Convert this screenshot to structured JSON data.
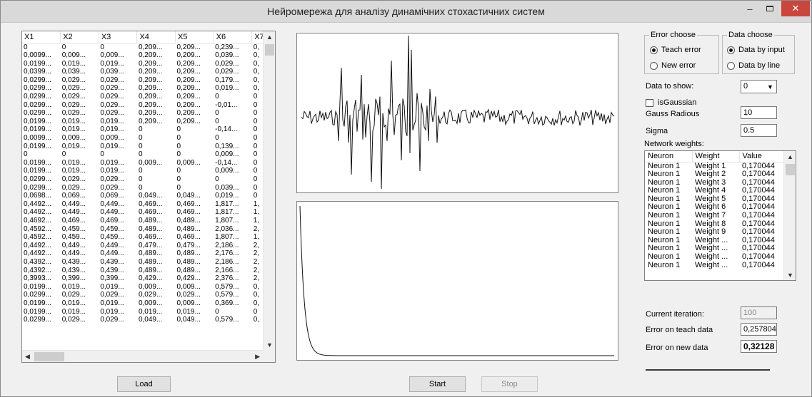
{
  "window": {
    "title": "Нейромережа для аналізу динамічних стохастичних систем",
    "minimize_glyph": "–",
    "close_glyph": "✕",
    "close_color": "#c9463d"
  },
  "data_grid": {
    "columns": [
      "X1",
      "X2",
      "X3",
      "X4",
      "X5",
      "X6",
      "X7"
    ],
    "rows": [
      [
        "0",
        "0",
        "0",
        "0,209...",
        "0,209...",
        "0,239...",
        "0,"
      ],
      [
        "0,0099...",
        "0,009...",
        "0,009...",
        "0,209...",
        "0,209...",
        "0,039...",
        "0,"
      ],
      [
        "0,0199...",
        "0,019...",
        "0,019...",
        "0,209...",
        "0,209...",
        "0,029...",
        "0,"
      ],
      [
        "0,0399...",
        "0,039...",
        "0,039...",
        "0,209...",
        "0,209...",
        "0,029...",
        "0,"
      ],
      [
        "0,0299...",
        "0,029...",
        "0,029...",
        "0,209...",
        "0,209...",
        "0,179...",
        "0,"
      ],
      [
        "0,0299...",
        "0,029...",
        "0,029...",
        "0,209...",
        "0,209...",
        "0,019...",
        "0,"
      ],
      [
        "0,0299...",
        "0,029...",
        "0,029...",
        "0,209...",
        "0,209...",
        "0",
        "0"
      ],
      [
        "0,0299...",
        "0,029...",
        "0,029...",
        "0,209...",
        "0,209...",
        "-0,01...",
        "0"
      ],
      [
        "0,0299...",
        "0,029...",
        "0,029...",
        "0,209...",
        "0,209...",
        "0",
        "0"
      ],
      [
        "0,0199...",
        "0,019...",
        "0,019...",
        "0,209...",
        "0,209...",
        "0",
        "0"
      ],
      [
        "0,0199...",
        "0,019...",
        "0,019...",
        "0",
        "0",
        "-0,14...",
        "0"
      ],
      [
        "0,0099...",
        "0,009...",
        "0,009...",
        "0",
        "0",
        "0",
        "0"
      ],
      [
        "0,0199...",
        "0,019...",
        "0,019...",
        "0",
        "0",
        "0,139...",
        "0"
      ],
      [
        "0",
        "0",
        "0",
        "0",
        "0",
        "0,009...",
        "0"
      ],
      [
        "0,0199...",
        "0,019...",
        "0,019...",
        "0,009...",
        "0,009...",
        "-0,14...",
        "0"
      ],
      [
        "0,0199...",
        "0,019...",
        "0,019...",
        "0",
        "0",
        "0,009...",
        "0"
      ],
      [
        "0,0299...",
        "0,029...",
        "0,029...",
        "0",
        "0",
        "0",
        "0"
      ],
      [
        "0,0299...",
        "0,029...",
        "0,029...",
        "0",
        "0",
        "0,039...",
        "0"
      ],
      [
        "0,0698...",
        "0,069...",
        "0,069...",
        "0,049...",
        "0,049...",
        "0,019...",
        "0"
      ],
      [
        "0,4492...",
        "0,449...",
        "0,449...",
        "0,469...",
        "0,469...",
        "1,817...",
        "1,"
      ],
      [
        "0,4492...",
        "0,449...",
        "0,449...",
        "0,469...",
        "0,469...",
        "1,817...",
        "1,"
      ],
      [
        "0,4692...",
        "0,469...",
        "0,469...",
        "0,489...",
        "0,489...",
        "1,807...",
        "1,"
      ],
      [
        "0,4592...",
        "0,459...",
        "0,459...",
        "0,489...",
        "0,489...",
        "2,036...",
        "2,"
      ],
      [
        "0,4592...",
        "0,459...",
        "0,459...",
        "0,469...",
        "0,469...",
        "1,807...",
        "1,"
      ],
      [
        "0,4492...",
        "0,449...",
        "0,449...",
        "0,479...",
        "0,479...",
        "2,186...",
        "2,"
      ],
      [
        "0,4492...",
        "0,449...",
        "0,449...",
        "0,489...",
        "0,489...",
        "2,176...",
        "2,"
      ],
      [
        "0,4392...",
        "0,439...",
        "0,439...",
        "0,489...",
        "0,489...",
        "2,186...",
        "2,"
      ],
      [
        "0,4392...",
        "0,439...",
        "0,439...",
        "0,489...",
        "0,489...",
        "2,166...",
        "2,"
      ],
      [
        "0,3993...",
        "0,399...",
        "0,399...",
        "0,429...",
        "0,429...",
        "2,376...",
        "2,"
      ],
      [
        "0,0199...",
        "0,019...",
        "0,019...",
        "0,009...",
        "0,009...",
        "0,579...",
        "0,"
      ],
      [
        "0,0299...",
        "0,029...",
        "0,029...",
        "0,029...",
        "0,029...",
        "0,579...",
        "0,"
      ],
      [
        "0,0199...",
        "0,019...",
        "0,019...",
        "0,009...",
        "0,009...",
        "0,369...",
        "0,"
      ],
      [
        "0,0199...",
        "0,019...",
        "0,019...",
        "0,019...",
        "0,019...",
        "0",
        "0"
      ],
      [
        "0,0299...",
        "0,029...",
        "0,029...",
        "0,049...",
        "0,049...",
        "0,579...",
        "0,"
      ]
    ]
  },
  "error_choose": {
    "legend": "Error choose",
    "options": [
      {
        "label": "Teach error",
        "selected": true
      },
      {
        "label": "New error",
        "selected": false
      }
    ]
  },
  "data_choose": {
    "legend": "Data choose",
    "options": [
      {
        "label": "Data by input",
        "selected": true
      },
      {
        "label": "Data by line",
        "selected": false
      }
    ]
  },
  "settings": {
    "data_to_show_label": "Data to show:",
    "data_to_show_value": "0",
    "is_gaussian_label": "isGaussian",
    "is_gaussian_checked": false,
    "gauss_radius_label": "Gauss Radious",
    "gauss_radius_value": "10",
    "sigma_label": "Sigma",
    "sigma_value": "0.5",
    "network_weights_label": "Network weights:"
  },
  "weights_list": {
    "columns": [
      "Neuron",
      "Weight",
      "Value"
    ],
    "rows": [
      [
        "Neuron 1",
        "Weight 1",
        "0,170044"
      ],
      [
        "Neuron 1",
        "Weight 2",
        "0,170044"
      ],
      [
        "Neuron 1",
        "Weight 3",
        "0,170044"
      ],
      [
        "Neuron 1",
        "Weight 4",
        "0,170044"
      ],
      [
        "Neuron 1",
        "Weight 5",
        "0,170044"
      ],
      [
        "Neuron 1",
        "Weight 6",
        "0,170044"
      ],
      [
        "Neuron 1",
        "Weight 7",
        "0,170044"
      ],
      [
        "Neuron 1",
        "Weight 8",
        "0,170044"
      ],
      [
        "Neuron 1",
        "Weight 9",
        "0,170044"
      ],
      [
        "Neuron 1",
        "Weight ...",
        "0,170044"
      ],
      [
        "Neuron 1",
        "Weight ...",
        "0,170044"
      ],
      [
        "Neuron 1",
        "Weight ...",
        "0,170044"
      ],
      [
        "Neuron 1",
        "Weight ...",
        "0,170044"
      ]
    ]
  },
  "status": {
    "current_iteration_label": "Current iteration:",
    "current_iteration_value": "100",
    "teach_error_label": "Error on teach data",
    "teach_error_value": "0,257804",
    "new_error_label": "Error on new data",
    "new_error_value": "0,32128"
  },
  "buttons": {
    "load": "Load",
    "start": "Start",
    "stop": "Stop"
  },
  "charts": {
    "signal": {
      "type": "line"
    },
    "error": {
      "type": "line"
    }
  }
}
